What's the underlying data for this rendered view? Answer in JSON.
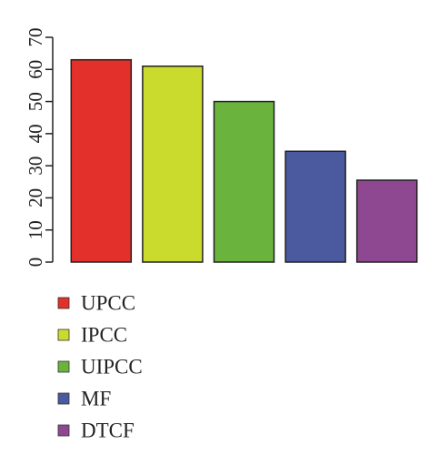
{
  "chart_data": {
    "type": "bar",
    "categories": [
      "UPCC",
      "IPCC",
      "UIPCC",
      "MF",
      "DTCF"
    ],
    "values": [
      63,
      61,
      50,
      34.5,
      25.5
    ],
    "colors": [
      "#e3302a",
      "#cbdb2e",
      "#6ab43d",
      "#4b5a9e",
      "#8e4891"
    ],
    "ylim": [
      0,
      70
    ],
    "yticks": [
      0,
      10,
      20,
      30,
      40,
      50,
      60,
      70
    ],
    "xlabel": "",
    "ylabel": "",
    "title": "",
    "grid": false,
    "legend": {
      "position": "bottom-left",
      "entries": [
        "UPCC",
        "IPCC",
        "UIPCC",
        "MF",
        "DTCF"
      ]
    }
  }
}
